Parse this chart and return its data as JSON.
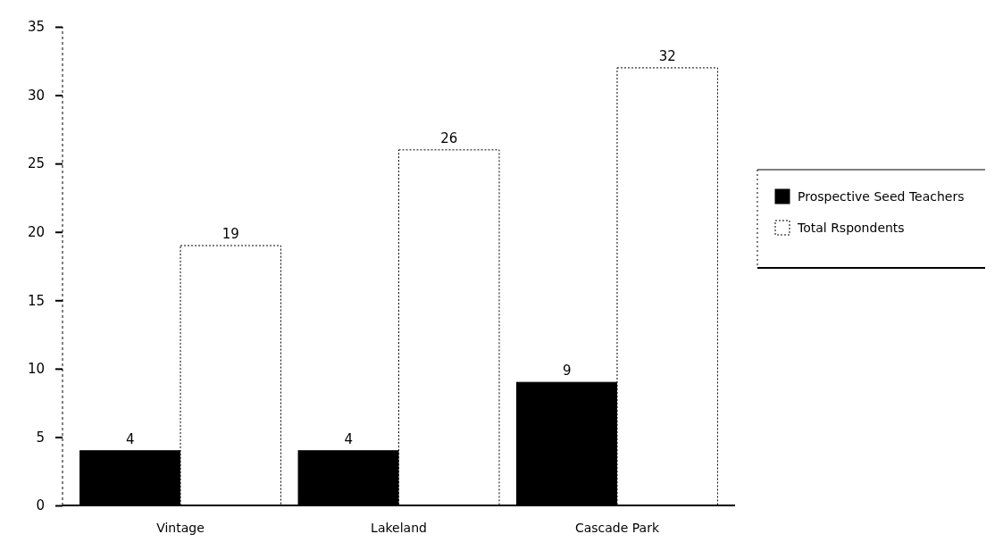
{
  "chart_data": {
    "type": "bar",
    "categories": [
      "Vintage",
      "Lakeland",
      "Cascade Park"
    ],
    "series": [
      {
        "name": "Prospective Seed Teachers",
        "color": "#000000",
        "values": [
          4,
          4,
          9
        ]
      },
      {
        "name": "Total Rspondents",
        "color": "#ffffff",
        "values": [
          19,
          26,
          32
        ]
      }
    ],
    "ylim": [
      0,
      35
    ],
    "yticks": [
      0,
      5,
      10,
      15,
      20,
      25,
      30,
      35
    ],
    "data_labels": true,
    "legend": "right",
    "grid": false
  }
}
